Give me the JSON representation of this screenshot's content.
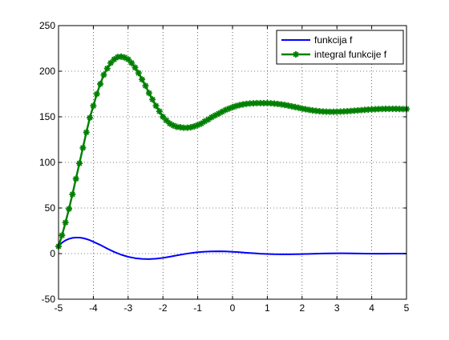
{
  "chart_data": {
    "type": "line",
    "title": "",
    "xlabel": "",
    "ylabel": "",
    "xlim": [
      -5,
      5
    ],
    "ylim": [
      -50,
      250
    ],
    "xticks": [
      -5,
      -4,
      -3,
      -2,
      -1,
      0,
      1,
      2,
      3,
      4,
      5
    ],
    "yticks": [
      -50,
      0,
      50,
      100,
      150,
      200,
      250
    ],
    "xtick_labels": [
      "-5",
      "-4",
      "-3",
      "-2",
      "-1",
      "0",
      "1",
      "2",
      "3",
      "4",
      "5"
    ],
    "ytick_labels": [
      "-50",
      "0",
      "50",
      "100",
      "150",
      "200",
      "250"
    ],
    "grid": true,
    "grid_style": "dotted",
    "legend_position": "top-right",
    "series": [
      {
        "name": "funkcija f",
        "color": "#0000ff",
        "marker": "none",
        "points": [
          [
            -5.0,
            8
          ],
          [
            -4.9,
            12
          ],
          [
            -4.8,
            14.5
          ],
          [
            -4.7,
            16.2
          ],
          [
            -4.6,
            17.2
          ],
          [
            -4.5,
            17.6
          ],
          [
            -4.4,
            17.5
          ],
          [
            -4.3,
            17.0
          ],
          [
            -4.2,
            16.0
          ],
          [
            -4.1,
            14.7
          ],
          [
            -4.0,
            13.0
          ],
          [
            -3.8,
            9.5
          ],
          [
            -3.6,
            5.5
          ],
          [
            -3.4,
            1.8
          ],
          [
            -3.2,
            -1.2
          ],
          [
            -3.0,
            -3.5
          ],
          [
            -2.8,
            -5.0
          ],
          [
            -2.6,
            -5.8
          ],
          [
            -2.4,
            -6.0
          ],
          [
            -2.2,
            -5.6
          ],
          [
            -2.0,
            -4.7
          ],
          [
            -1.8,
            -3.4
          ],
          [
            -1.6,
            -2.0
          ],
          [
            -1.4,
            -0.6
          ],
          [
            -1.2,
            0.6
          ],
          [
            -1.0,
            1.5
          ],
          [
            -0.8,
            2.1
          ],
          [
            -0.6,
            2.4
          ],
          [
            -0.4,
            2.5
          ],
          [
            -0.2,
            2.4
          ],
          [
            0.0,
            2.0
          ],
          [
            0.2,
            1.5
          ],
          [
            0.4,
            0.9
          ],
          [
            0.6,
            0.4
          ],
          [
            0.8,
            -0.1
          ],
          [
            1.0,
            -0.4
          ],
          [
            1.2,
            -0.7
          ],
          [
            1.4,
            -0.8
          ],
          [
            1.6,
            -0.8
          ],
          [
            1.8,
            -0.7
          ],
          [
            2.0,
            -0.5
          ],
          [
            2.2,
            -0.3
          ],
          [
            2.4,
            -0.1
          ],
          [
            2.6,
            0.1
          ],
          [
            2.8,
            0.2
          ],
          [
            3.0,
            0.3
          ],
          [
            3.2,
            0.3
          ],
          [
            3.4,
            0.2
          ],
          [
            3.6,
            0.1
          ],
          [
            3.8,
            0.0
          ],
          [
            4.0,
            -0.1
          ],
          [
            4.2,
            -0.1
          ],
          [
            4.4,
            -0.1
          ],
          [
            4.6,
            0.0
          ],
          [
            4.8,
            0.0
          ],
          [
            5.0,
            0.0
          ]
        ]
      },
      {
        "name": "integral funkcije f",
        "color": "#008000",
        "marker": "star",
        "points": [
          [
            -5.0,
            8
          ],
          [
            -4.9,
            20
          ],
          [
            -4.8,
            34
          ],
          [
            -4.7,
            49
          ],
          [
            -4.6,
            65
          ],
          [
            -4.5,
            82
          ],
          [
            -4.4,
            99
          ],
          [
            -4.3,
            116
          ],
          [
            -4.2,
            133
          ],
          [
            -4.1,
            149
          ],
          [
            -4.0,
            162
          ],
          [
            -3.9,
            175
          ],
          [
            -3.8,
            186
          ],
          [
            -3.7,
            196
          ],
          [
            -3.6,
            203
          ],
          [
            -3.5,
            209
          ],
          [
            -3.4,
            213
          ],
          [
            -3.3,
            215.5
          ],
          [
            -3.2,
            216
          ],
          [
            -3.1,
            215
          ],
          [
            -3.0,
            213
          ],
          [
            -2.9,
            209
          ],
          [
            -2.8,
            204
          ],
          [
            -2.7,
            198
          ],
          [
            -2.6,
            191
          ],
          [
            -2.5,
            184
          ],
          [
            -2.4,
            176
          ],
          [
            -2.3,
            169
          ],
          [
            -2.2,
            162
          ],
          [
            -2.1,
            156
          ],
          [
            -2.0,
            150
          ],
          [
            -1.9,
            146
          ],
          [
            -1.8,
            142.5
          ],
          [
            -1.7,
            140.5
          ],
          [
            -1.6,
            139
          ],
          [
            -1.5,
            138.5
          ],
          [
            -1.4,
            138
          ],
          [
            -1.3,
            138
          ],
          [
            -1.2,
            138.5
          ],
          [
            -1.1,
            139.5
          ],
          [
            -1.0,
            141
          ],
          [
            -0.9,
            142.5
          ],
          [
            -0.8,
            145
          ],
          [
            -0.7,
            147
          ],
          [
            -0.6,
            149.5
          ],
          [
            -0.5,
            151.5
          ],
          [
            -0.4,
            153.5
          ],
          [
            -0.3,
            155.5
          ],
          [
            -0.2,
            157.5
          ],
          [
            -0.1,
            159
          ],
          [
            0.0,
            160.5
          ],
          [
            0.1,
            161.8
          ],
          [
            0.2,
            162.8
          ],
          [
            0.3,
            163.6
          ],
          [
            0.4,
            164.2
          ],
          [
            0.5,
            164.6
          ],
          [
            0.6,
            164.8
          ],
          [
            0.7,
            165.0
          ],
          [
            0.8,
            165.0
          ],
          [
            0.9,
            165.0
          ],
          [
            1.0,
            165.0
          ],
          [
            1.1,
            164.8
          ],
          [
            1.2,
            164.5
          ],
          [
            1.3,
            164.1
          ],
          [
            1.4,
            163.6
          ],
          [
            1.5,
            163.0
          ],
          [
            1.6,
            162.3
          ],
          [
            1.7,
            161.5
          ],
          [
            1.8,
            160.7
          ],
          [
            1.9,
            159.9
          ],
          [
            2.0,
            159.0
          ],
          [
            2.1,
            158.3
          ],
          [
            2.2,
            157.6
          ],
          [
            2.3,
            157.0
          ],
          [
            2.4,
            156.5
          ],
          [
            2.5,
            156.1
          ],
          [
            2.6,
            155.8
          ],
          [
            2.7,
            155.6
          ],
          [
            2.8,
            155.5
          ],
          [
            2.9,
            155.5
          ],
          [
            3.0,
            155.6
          ],
          [
            3.1,
            155.7
          ],
          [
            3.2,
            155.9
          ],
          [
            3.3,
            156.1
          ],
          [
            3.4,
            156.4
          ],
          [
            3.5,
            156.7
          ],
          [
            3.6,
            157.0
          ],
          [
            3.7,
            157.3
          ],
          [
            3.8,
            157.6
          ],
          [
            3.9,
            157.9
          ],
          [
            4.0,
            158.1
          ],
          [
            4.1,
            158.3
          ],
          [
            4.2,
            158.5
          ],
          [
            4.3,
            158.6
          ],
          [
            4.4,
            158.7
          ],
          [
            4.5,
            158.7
          ],
          [
            4.6,
            158.7
          ],
          [
            4.7,
            158.7
          ],
          [
            4.8,
            158.6
          ],
          [
            4.9,
            158.5
          ],
          [
            5.0,
            158.5
          ]
        ]
      }
    ]
  }
}
